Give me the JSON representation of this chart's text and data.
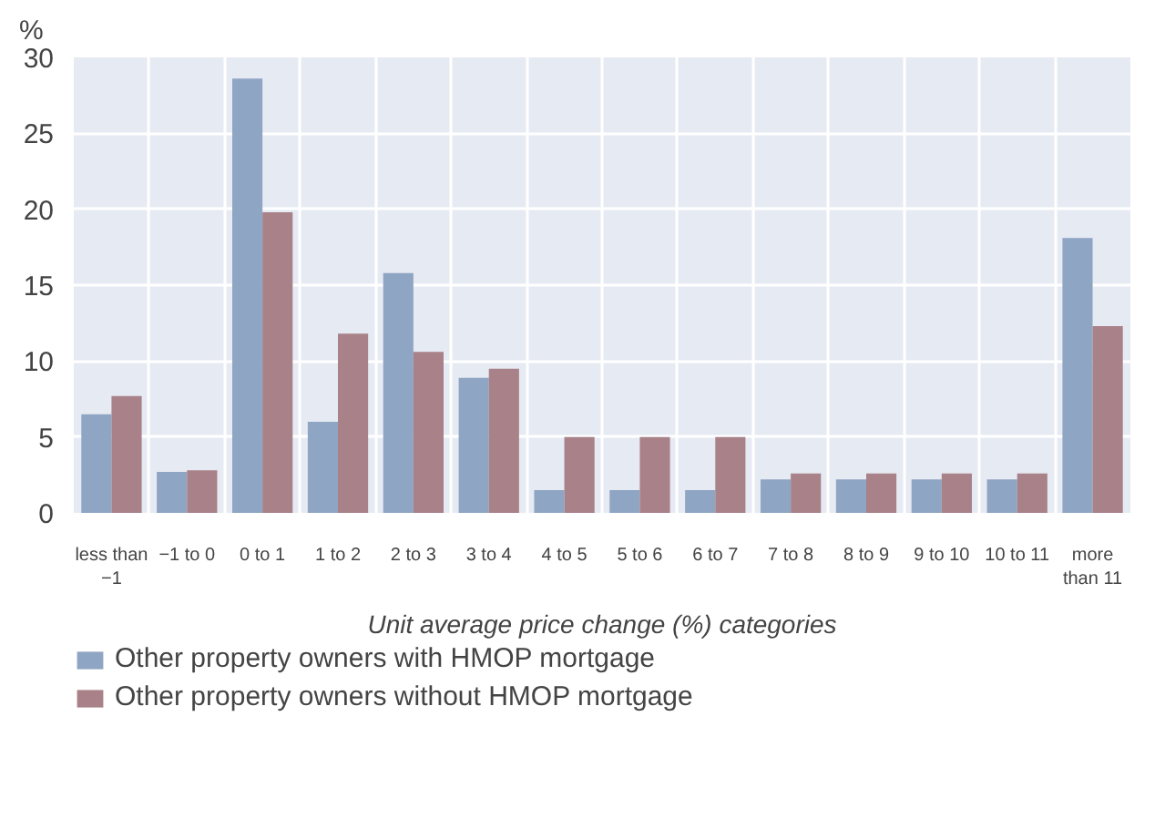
{
  "chart_data": {
    "type": "bar",
    "ylabel": "%",
    "xlabel": "Unit average price change (%) categories",
    "categories": [
      "less than\n−1",
      "−1 to 0",
      "0 to 1",
      "1 to 2",
      "2 to 3",
      "3 to 4",
      "4 to 5",
      "5 to 6",
      "6 to 7",
      "7 to 8",
      "8 to 9",
      "9 to 10",
      "10 to 11",
      "more\nthan 11"
    ],
    "series": [
      {
        "name": "Other property owners with HMOP mortgage",
        "color": "#8fa5c4",
        "values": [
          6.5,
          2.7,
          28.6,
          6.0,
          15.8,
          8.9,
          1.5,
          1.5,
          1.5,
          2.2,
          2.2,
          2.2,
          2.2,
          18.1
        ]
      },
      {
        "name": "Other property owners without HMOP mortgage",
        "color": "#a88189",
        "values": [
          7.7,
          2.8,
          19.8,
          11.8,
          10.6,
          9.5,
          5.0,
          5.0,
          5.0,
          2.6,
          2.6,
          2.6,
          2.6,
          12.3
        ]
      }
    ],
    "ylim": [
      0,
      30
    ],
    "yticks": [
      0,
      5,
      10,
      15,
      20,
      25,
      30
    ],
    "grid": true,
    "legend": "bottom"
  }
}
